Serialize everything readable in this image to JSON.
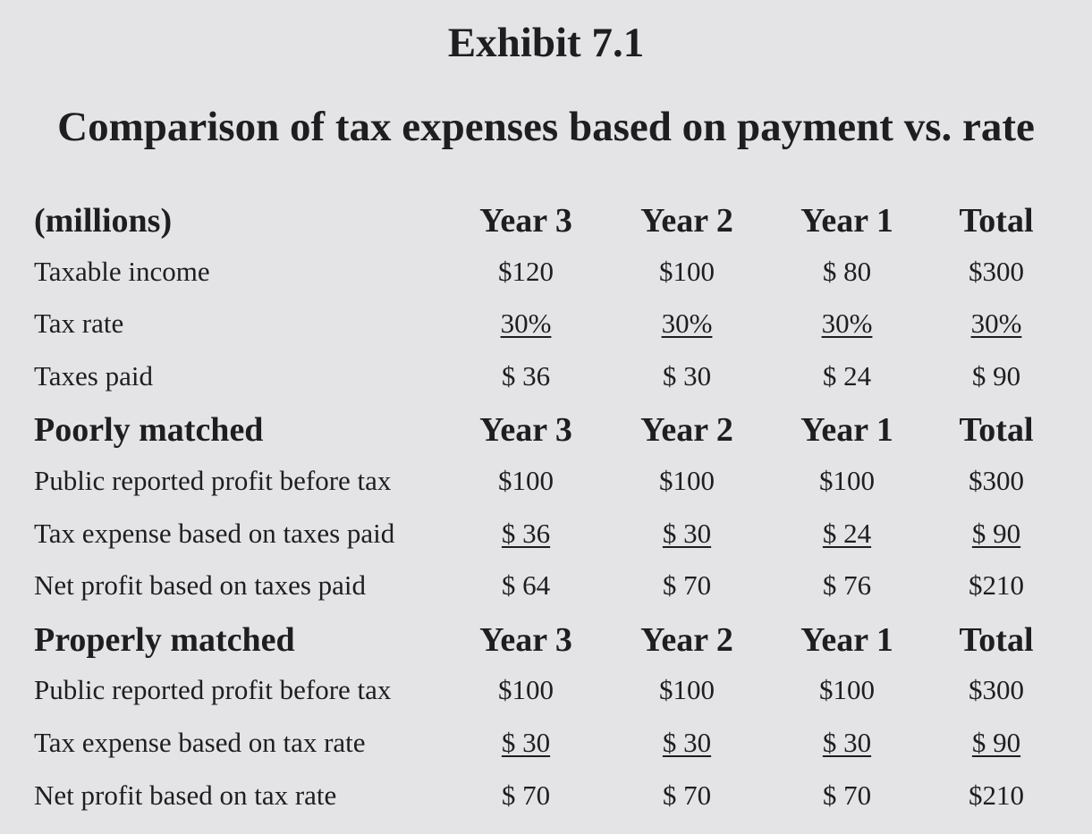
{
  "title": "Exhibit 7.1",
  "subtitle": "Comparison of tax expenses based on payment vs. rate",
  "sections": [
    {
      "header": {
        "label": "(millions)",
        "columns": [
          "Year 3",
          "Year 2",
          "Year 1",
          "Total"
        ]
      },
      "rows": [
        {
          "label": "Taxable income",
          "values": [
            "$120",
            "$100",
            "$ 80",
            "$300"
          ],
          "underlined": false
        },
        {
          "label": "Tax rate",
          "values": [
            "30%",
            "30%",
            "30%",
            "30%"
          ],
          "underlined": true
        },
        {
          "label": "Taxes paid",
          "values": [
            "$ 36",
            "$ 30",
            "$ 24",
            "$ 90"
          ],
          "underlined": false
        }
      ]
    },
    {
      "header": {
        "label": "Poorly matched",
        "columns": [
          "Year 3",
          "Year 2",
          "Year 1",
          "Total"
        ]
      },
      "rows": [
        {
          "label": "Public reported profit before tax",
          "values": [
            "$100",
            "$100",
            "$100",
            "$300"
          ],
          "underlined": false
        },
        {
          "label": "Tax expense based on taxes paid",
          "values": [
            "$ 36",
            "$ 30",
            "$ 24",
            "$ 90"
          ],
          "underlined": true
        },
        {
          "label": "Net profit based on taxes paid",
          "values": [
            "$ 64",
            "$ 70",
            "$ 76",
            "$210"
          ],
          "underlined": false
        }
      ]
    },
    {
      "header": {
        "label": "Properly matched",
        "columns": [
          "Year 3",
          "Year 2",
          "Year 1",
          "Total"
        ]
      },
      "rows": [
        {
          "label": "Public reported profit before tax",
          "values": [
            "$100",
            "$100",
            "$100",
            "$300"
          ],
          "underlined": false
        },
        {
          "label": "Tax expense based on tax rate",
          "values": [
            "$ 30",
            "$ 30",
            "$ 30",
            "$ 90"
          ],
          "underlined": true
        },
        {
          "label": "Net profit based on tax rate",
          "values": [
            "$ 70",
            "$ 70",
            "$ 70",
            "$210"
          ],
          "underlined": false
        }
      ]
    }
  ]
}
